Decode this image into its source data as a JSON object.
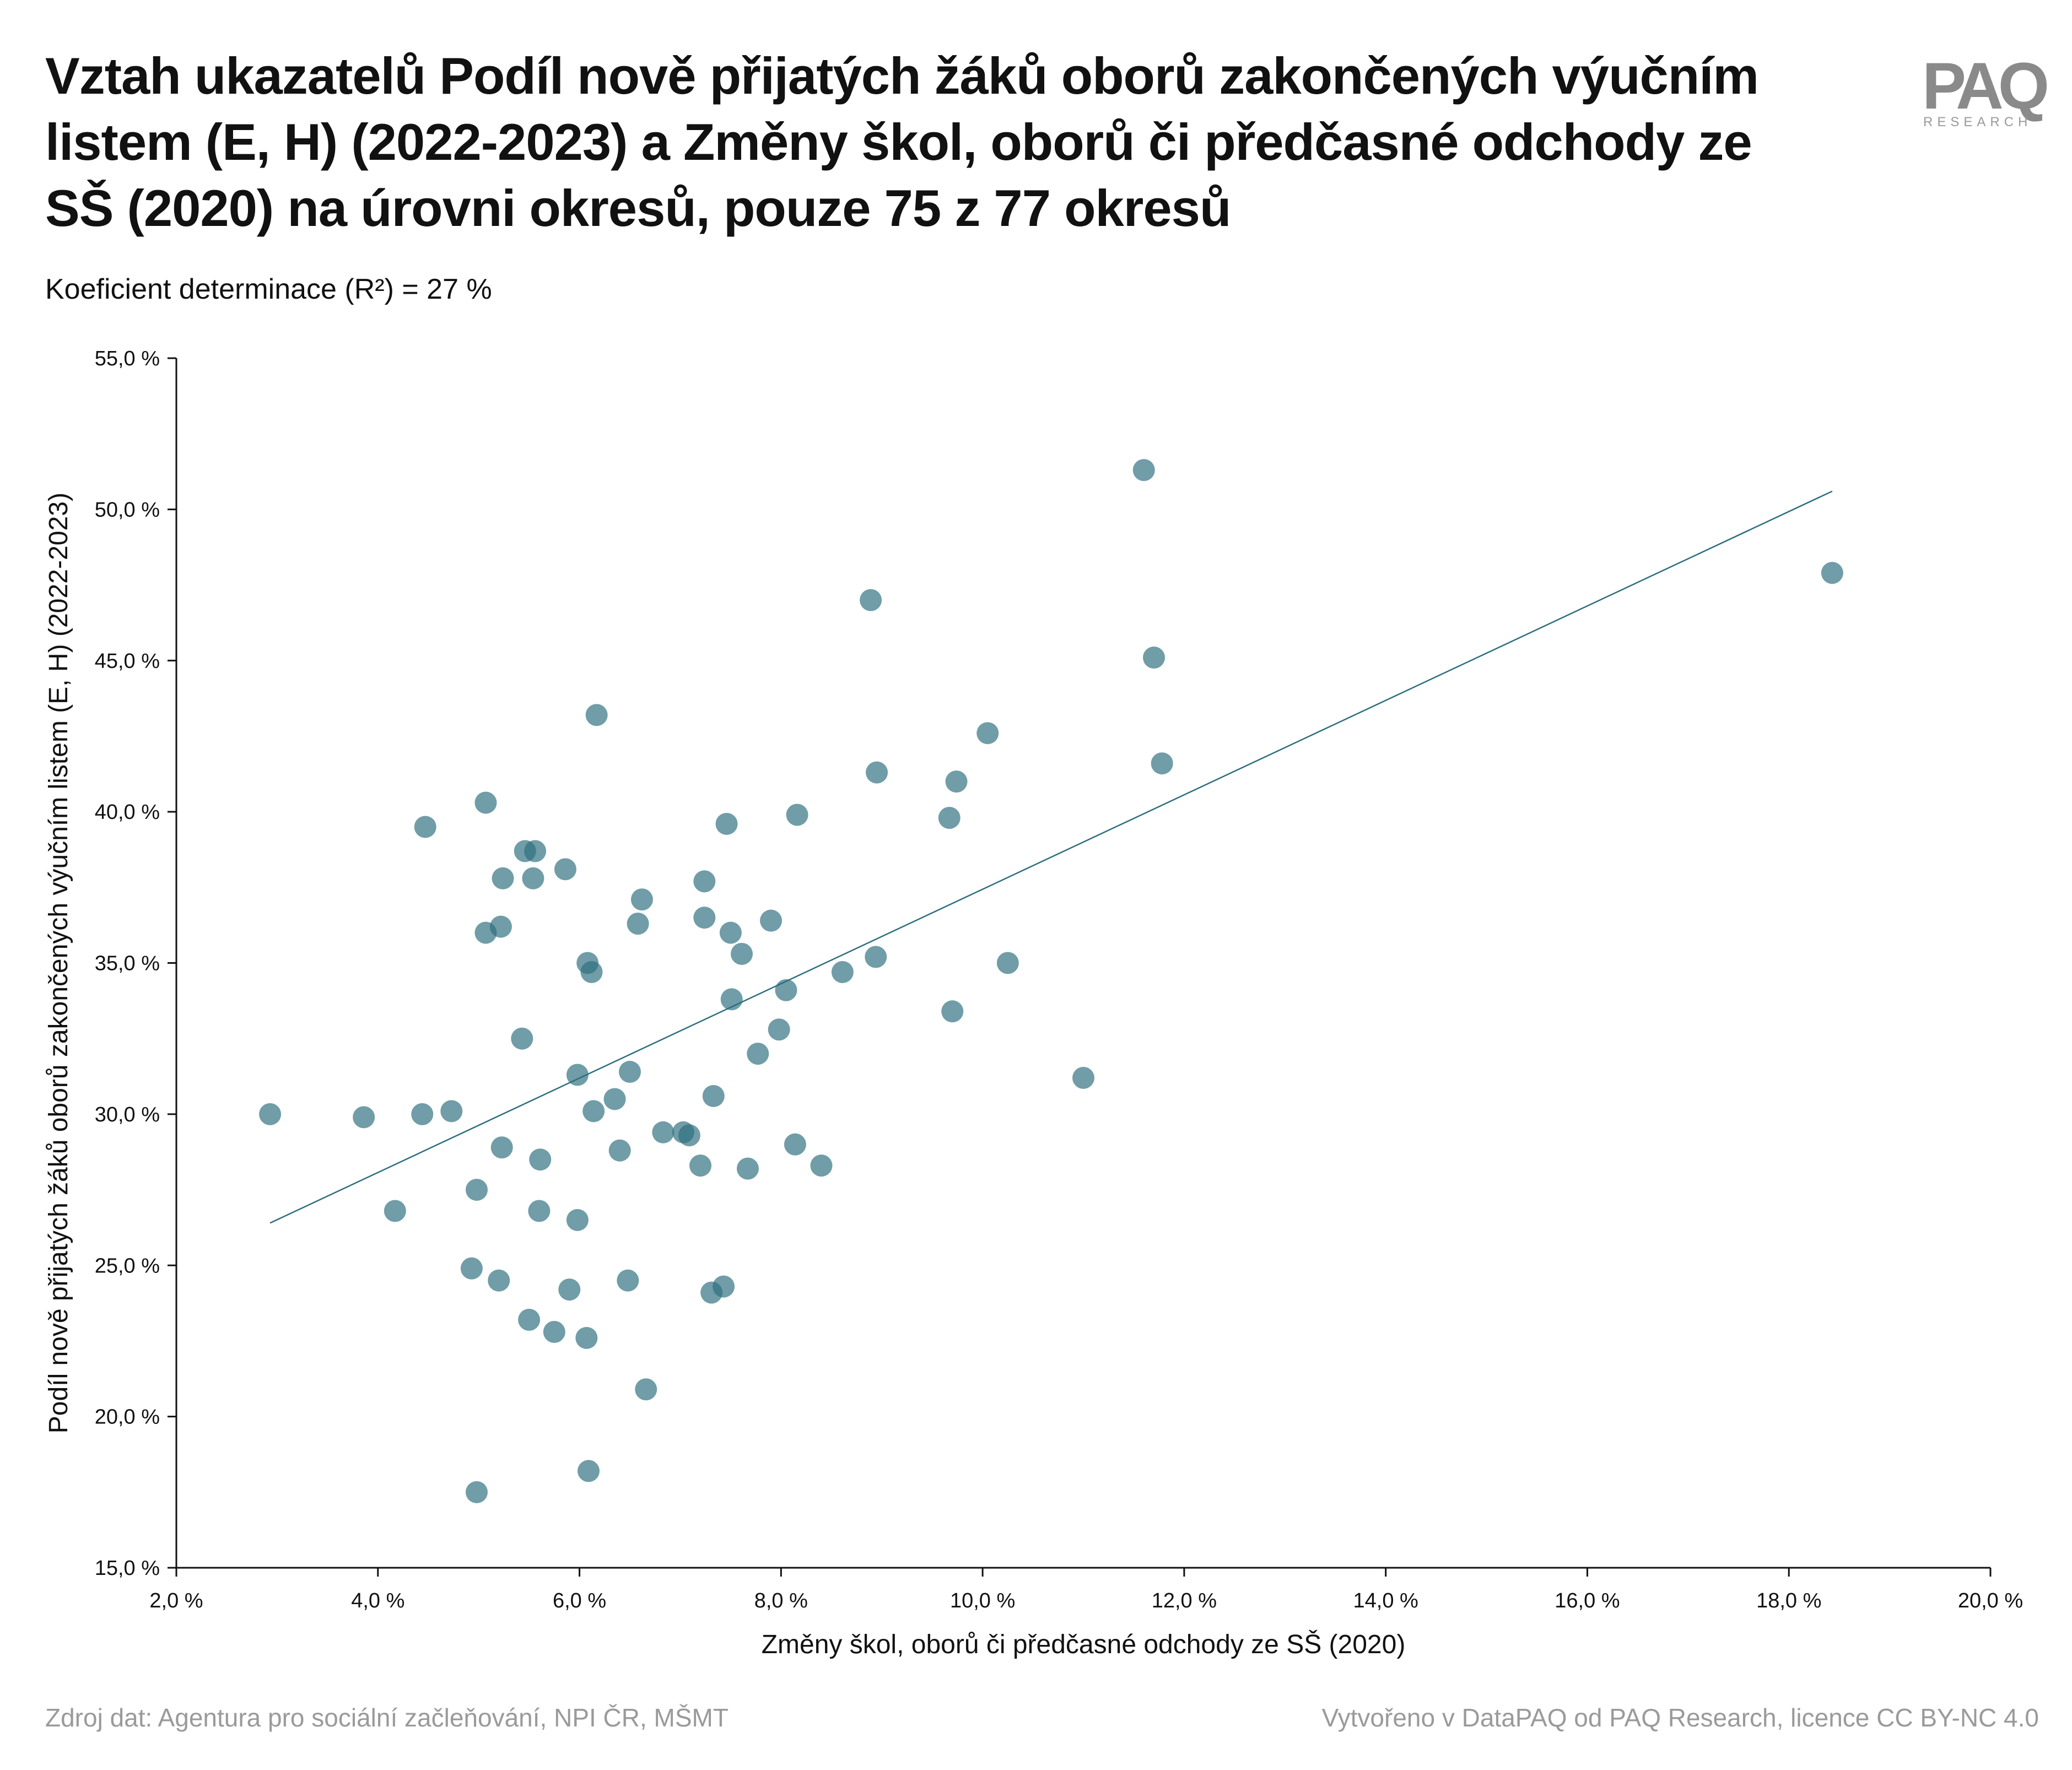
{
  "header": {
    "title": "Vztah ukazatelů Podíl nově přijatých žáků oborů zakončených výučním listem (E, H) (2022-2023) a Změny škol, oborů či předčasné odchody ze SŠ (2020) na úrovni okresů, pouze 75 z 77 okresů",
    "subtitle": "Koeficient determinace (R²) = 27 %",
    "logo_main": "PAQ",
    "logo_sub": "RESEARCH"
  },
  "footer": {
    "source": "Zdroj dat: Agentura pro sociální začleňování, NPI ČR, MŠMT",
    "credit": "Vytvořeno v DataPAQ od PAQ Research, licence CC BY-NC 4.0"
  },
  "colors": {
    "point": "#2c6e7e",
    "trendline": "#2c6e7e",
    "axis": "#111111"
  },
  "chart_data": {
    "type": "scatter",
    "title": "Vztah ukazatelů Podíl nově přijatých žáků oborů zakončených výučním listem (E, H) (2022-2023) a Změny škol, oborů či předčasné odchody ze SŠ (2020) na úrovni okresů, pouze 75 z 77 okresů",
    "xlabel": "Změny škol, oborů či předčasné odchody ze SŠ (2020)",
    "ylabel": "Podíl nově přijatých žáků oborů zakončených výučním listem (E, H) (2022-2023)",
    "xlim": [
      2,
      20
    ],
    "ylim": [
      15,
      55
    ],
    "x_ticks": [
      2,
      4,
      6,
      8,
      10,
      12,
      14,
      16,
      18,
      20
    ],
    "y_ticks": [
      15,
      20,
      25,
      30,
      35,
      40,
      45,
      50,
      55
    ],
    "x_tick_labels": [
      "2,0 %",
      "4,0 %",
      "6,0 %",
      "8,0 %",
      "10,0 %",
      "12,0 %",
      "14,0 %",
      "16,0 %",
      "18,0 %",
      "20,0 %"
    ],
    "y_tick_labels": [
      "15,0 %",
      "20,0 %",
      "25,0 %",
      "30,0 %",
      "35,0 %",
      "40,0 %",
      "45,0 %",
      "50,0 %",
      "55,0 %"
    ],
    "grid": false,
    "trendline": {
      "x": [
        2.93,
        18.43
      ],
      "y": [
        26.4,
        50.6
      ]
    },
    "points": [
      {
        "x": 2.93,
        "y": 30.0
      },
      {
        "x": 3.86,
        "y": 29.9
      },
      {
        "x": 4.17,
        "y": 26.8
      },
      {
        "x": 4.44,
        "y": 30.0
      },
      {
        "x": 4.47,
        "y": 39.5
      },
      {
        "x": 4.73,
        "y": 30.1
      },
      {
        "x": 4.93,
        "y": 24.9
      },
      {
        "x": 4.98,
        "y": 27.5
      },
      {
        "x": 4.98,
        "y": 17.5
      },
      {
        "x": 5.07,
        "y": 40.3
      },
      {
        "x": 5.07,
        "y": 36.0
      },
      {
        "x": 5.2,
        "y": 24.5
      },
      {
        "x": 5.22,
        "y": 36.2
      },
      {
        "x": 5.23,
        "y": 28.9
      },
      {
        "x": 5.24,
        "y": 37.8
      },
      {
        "x": 5.43,
        "y": 32.5
      },
      {
        "x": 5.46,
        "y": 38.7
      },
      {
        "x": 5.5,
        "y": 23.2
      },
      {
        "x": 5.54,
        "y": 37.8
      },
      {
        "x": 5.56,
        "y": 38.7
      },
      {
        "x": 5.6,
        "y": 26.8
      },
      {
        "x": 5.61,
        "y": 28.5
      },
      {
        "x": 5.75,
        "y": 22.8
      },
      {
        "x": 5.86,
        "y": 38.1
      },
      {
        "x": 5.9,
        "y": 24.2
      },
      {
        "x": 5.98,
        "y": 31.3
      },
      {
        "x": 5.98,
        "y": 26.5
      },
      {
        "x": 6.07,
        "y": 22.6
      },
      {
        "x": 6.08,
        "y": 35.0
      },
      {
        "x": 6.09,
        "y": 18.2
      },
      {
        "x": 6.12,
        "y": 34.7
      },
      {
        "x": 6.14,
        "y": 30.1
      },
      {
        "x": 6.17,
        "y": 43.2
      },
      {
        "x": 6.35,
        "y": 30.5
      },
      {
        "x": 6.4,
        "y": 28.8
      },
      {
        "x": 6.48,
        "y": 24.5
      },
      {
        "x": 6.5,
        "y": 31.4
      },
      {
        "x": 6.58,
        "y": 36.3
      },
      {
        "x": 6.62,
        "y": 37.1
      },
      {
        "x": 6.66,
        "y": 20.9
      },
      {
        "x": 6.83,
        "y": 29.4
      },
      {
        "x": 7.03,
        "y": 29.4
      },
      {
        "x": 7.09,
        "y": 29.3
      },
      {
        "x": 7.2,
        "y": 28.3
      },
      {
        "x": 7.24,
        "y": 37.7
      },
      {
        "x": 7.24,
        "y": 36.5
      },
      {
        "x": 7.31,
        "y": 24.1
      },
      {
        "x": 7.33,
        "y": 30.6
      },
      {
        "x": 7.43,
        "y": 24.3
      },
      {
        "x": 7.46,
        "y": 39.6
      },
      {
        "x": 7.5,
        "y": 36.0
      },
      {
        "x": 7.51,
        "y": 33.8
      },
      {
        "x": 7.61,
        "y": 35.3
      },
      {
        "x": 7.67,
        "y": 28.2
      },
      {
        "x": 7.77,
        "y": 32.0
      },
      {
        "x": 7.9,
        "y": 36.4
      },
      {
        "x": 7.98,
        "y": 32.8
      },
      {
        "x": 8.05,
        "y": 34.1
      },
      {
        "x": 8.14,
        "y": 29.0
      },
      {
        "x": 8.16,
        "y": 39.9
      },
      {
        "x": 8.4,
        "y": 28.3
      },
      {
        "x": 8.61,
        "y": 34.7
      },
      {
        "x": 8.89,
        "y": 47.0
      },
      {
        "x": 8.94,
        "y": 35.2
      },
      {
        "x": 8.95,
        "y": 41.3
      },
      {
        "x": 9.67,
        "y": 39.8
      },
      {
        "x": 9.7,
        "y": 33.4
      },
      {
        "x": 9.74,
        "y": 41.0
      },
      {
        "x": 10.05,
        "y": 42.6
      },
      {
        "x": 10.25,
        "y": 35.0
      },
      {
        "x": 11.0,
        "y": 31.2
      },
      {
        "x": 11.6,
        "y": 51.3
      },
      {
        "x": 11.7,
        "y": 45.1
      },
      {
        "x": 11.78,
        "y": 41.6
      },
      {
        "x": 18.43,
        "y": 47.9
      }
    ]
  }
}
